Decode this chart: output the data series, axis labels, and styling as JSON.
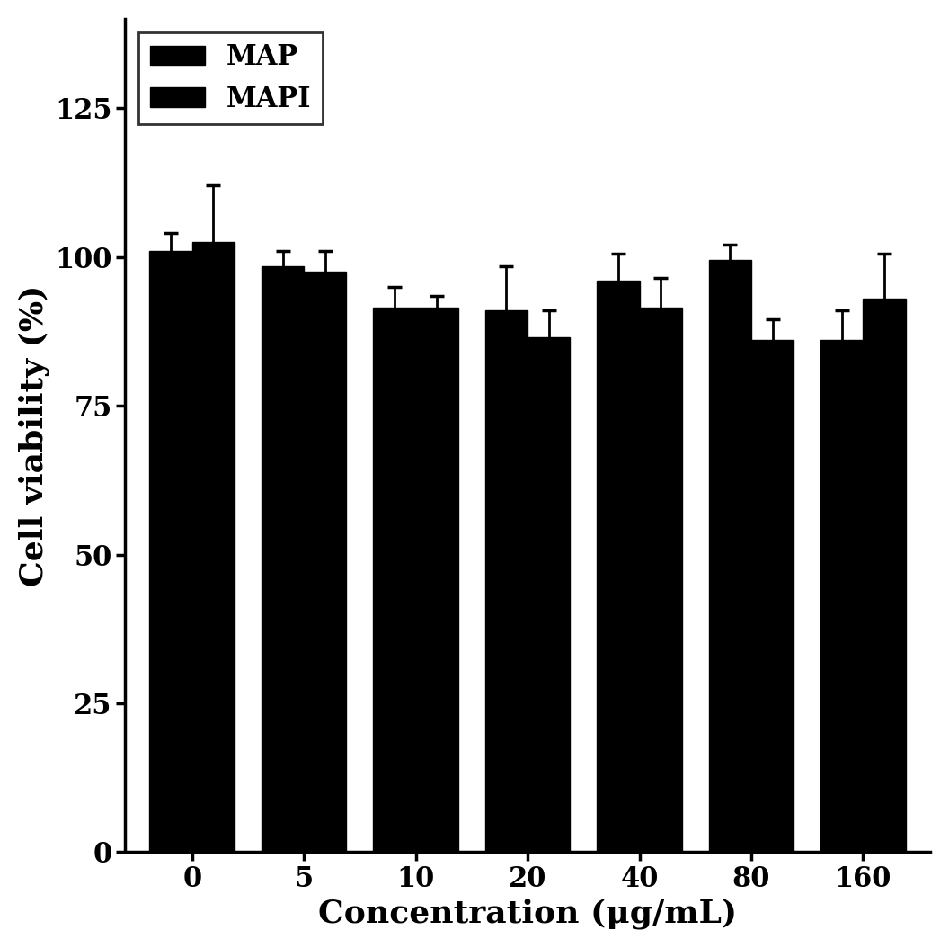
{
  "categories": [
    "0",
    "5",
    "10",
    "20",
    "40",
    "80",
    "160"
  ],
  "map_values": [
    101,
    98.5,
    91.5,
    91.0,
    96.0,
    99.5,
    86.0
  ],
  "mapi_values": [
    102.5,
    97.5,
    91.5,
    86.5,
    91.5,
    86.0,
    93.0
  ],
  "map_errors": [
    3.0,
    2.5,
    3.5,
    7.5,
    4.5,
    2.5,
    5.0
  ],
  "mapi_errors": [
    9.5,
    3.5,
    2.0,
    4.5,
    5.0,
    3.5,
    7.5
  ],
  "bar_color": "#000000",
  "ylabel": "Cell viability (%)",
  "xlabel": "Concentration (μg/mL)",
  "ylim": [
    0,
    140
  ],
  "yticks": [
    0,
    25,
    50,
    75,
    100,
    125
  ],
  "legend_labels": [
    "MAP",
    "MAPI"
  ],
  "bar_width": 0.38,
  "background_color": "#ffffff",
  "axis_linewidth": 2.5,
  "ylabel_fontsize": 26,
  "xlabel_fontsize": 26,
  "tick_fontsize": 22,
  "legend_fontsize": 22,
  "capsize": 6
}
